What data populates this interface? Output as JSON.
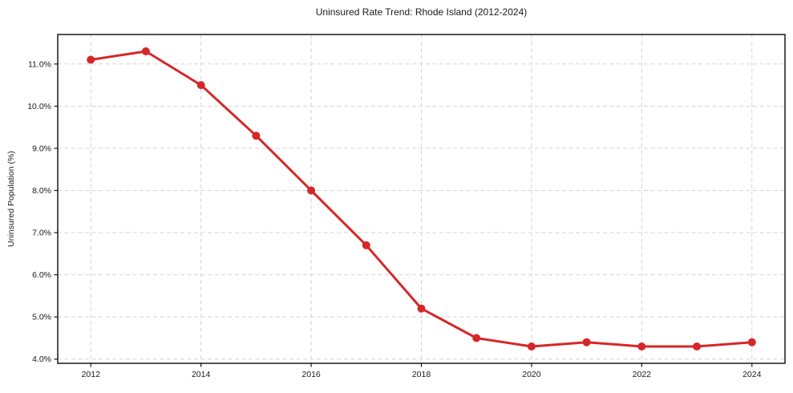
{
  "figure": {
    "title": "Uninsured Rate Trend: Rhode Island (2012-2024)",
    "ylabel": "Uninsured Population (%)"
  },
  "chart_data": {
    "type": "line",
    "title": "Uninsured Rate Trend: Rhode Island (2012-2024)",
    "xlabel": "",
    "ylabel": "Uninsured Population (%)",
    "x": [
      2012,
      2013,
      2014,
      2015,
      2016,
      2017,
      2018,
      2019,
      2020,
      2021,
      2022,
      2023,
      2024
    ],
    "series": [
      {
        "name": "Uninsured Population (%)",
        "values": [
          11.1,
          11.3,
          10.5,
          9.3,
          8.0,
          6.7,
          5.2,
          4.5,
          4.3,
          4.4,
          4.3,
          4.3,
          4.4
        ]
      }
    ],
    "xlim": [
      2011.4,
      2024.6
    ],
    "ylim": [
      3.9,
      11.7
    ],
    "xticks": {
      "values": [
        2012,
        2014,
        2016,
        2018,
        2020,
        2022,
        2024
      ],
      "labels": [
        "2012",
        "2014",
        "2016",
        "2018",
        "2020",
        "2022",
        "2024"
      ]
    },
    "yticks": {
      "values": [
        4.0,
        5.0,
        6.0,
        7.0,
        8.0,
        9.0,
        10.0,
        11.0
      ],
      "labels": [
        "4.0%",
        "5.0%",
        "6.0%",
        "7.0%",
        "8.0%",
        "9.0%",
        "10.0%",
        "11.0%"
      ]
    },
    "grid": true,
    "legend": false,
    "marker": "circle",
    "colors": {
      "line": "#d62728",
      "grid": "#d4d4d4",
      "spine": "#1a1a1a",
      "text": "#1a1a1a",
      "background": "#ffffff"
    }
  }
}
